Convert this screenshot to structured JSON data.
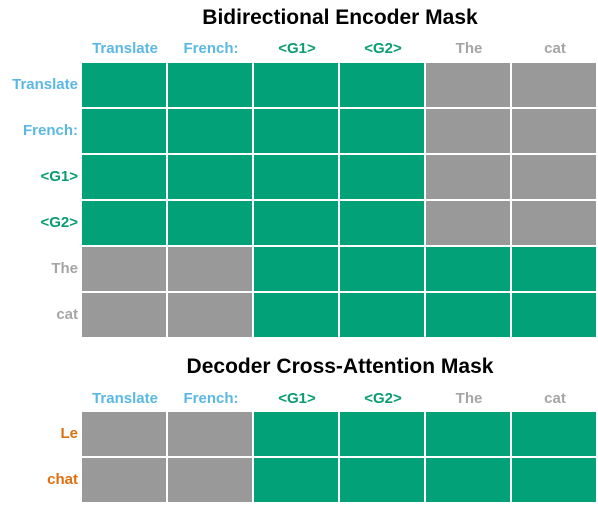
{
  "colors": {
    "on": "#02a177",
    "off": "#999999",
    "instruction_text": "#5bb8e2",
    "gist_text": "#0a9d70",
    "input_text": "#a5a5a5",
    "output_text": "#e06e0e"
  },
  "encoder": {
    "title": "Bidirectional Encoder Mask",
    "columns": [
      {
        "label": "Translate",
        "kind": "instruction"
      },
      {
        "label": "French:",
        "kind": "instruction"
      },
      {
        "label": "<G1>",
        "kind": "gist"
      },
      {
        "label": "<G2>",
        "kind": "gist"
      },
      {
        "label": "The",
        "kind": "input"
      },
      {
        "label": "cat",
        "kind": "input"
      }
    ],
    "rows": [
      {
        "label": "Translate",
        "kind": "instruction",
        "mask": [
          1,
          1,
          1,
          1,
          0,
          0
        ]
      },
      {
        "label": "French:",
        "kind": "instruction",
        "mask": [
          1,
          1,
          1,
          1,
          0,
          0
        ]
      },
      {
        "label": "<G1>",
        "kind": "gist",
        "mask": [
          1,
          1,
          1,
          1,
          0,
          0
        ]
      },
      {
        "label": "<G2>",
        "kind": "gist",
        "mask": [
          1,
          1,
          1,
          1,
          0,
          0
        ]
      },
      {
        "label": "The",
        "kind": "input",
        "mask": [
          0,
          0,
          1,
          1,
          1,
          1
        ]
      },
      {
        "label": "cat",
        "kind": "input",
        "mask": [
          0,
          0,
          1,
          1,
          1,
          1
        ]
      }
    ]
  },
  "decoder": {
    "title": "Decoder Cross-Attention Mask",
    "columns": [
      {
        "label": "Translate",
        "kind": "instruction"
      },
      {
        "label": "French:",
        "kind": "instruction"
      },
      {
        "label": "<G1>",
        "kind": "gist"
      },
      {
        "label": "<G2>",
        "kind": "gist"
      },
      {
        "label": "The",
        "kind": "input"
      },
      {
        "label": "cat",
        "kind": "input"
      }
    ],
    "rows": [
      {
        "label": "Le",
        "kind": "output",
        "mask": [
          0,
          0,
          1,
          1,
          1,
          1
        ]
      },
      {
        "label": "chat",
        "kind": "output",
        "mask": [
          0,
          0,
          1,
          1,
          1,
          1
        ]
      }
    ]
  }
}
